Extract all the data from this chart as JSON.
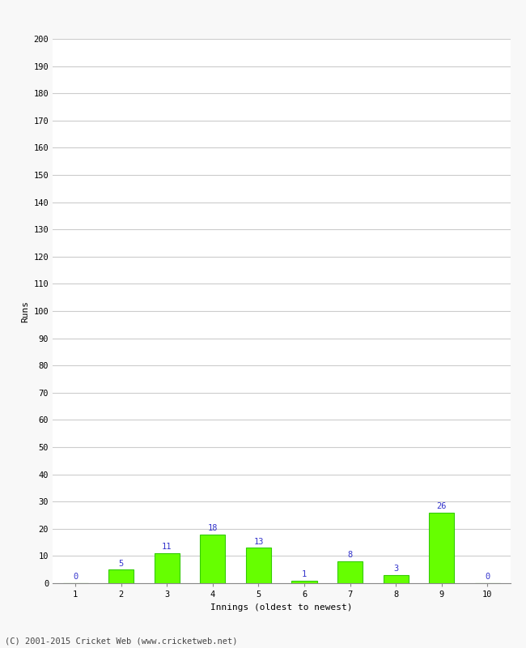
{
  "xlabel": "Innings (oldest to newest)",
  "ylabel": "Runs",
  "categories": [
    "1",
    "2",
    "3",
    "4",
    "5",
    "6",
    "7",
    "8",
    "9",
    "10"
  ],
  "values": [
    0,
    5,
    11,
    18,
    13,
    1,
    8,
    3,
    26,
    0
  ],
  "bar_color": "#66ff00",
  "bar_edge_color": "#33cc00",
  "label_color": "#3333cc",
  "ylim": [
    0,
    200
  ],
  "yticks": [
    0,
    10,
    20,
    30,
    40,
    50,
    60,
    70,
    80,
    90,
    100,
    110,
    120,
    130,
    140,
    150,
    160,
    170,
    180,
    190,
    200
  ],
  "background_color": "#f8f8f8",
  "plot_bg_color": "#ffffff",
  "grid_color": "#cccccc",
  "footer": "(C) 2001-2015 Cricket Web (www.cricketweb.net)",
  "label_fontsize": 7.5,
  "axis_label_fontsize": 8,
  "tick_fontsize": 7.5,
  "footer_fontsize": 7.5,
  "bar_width": 0.55
}
